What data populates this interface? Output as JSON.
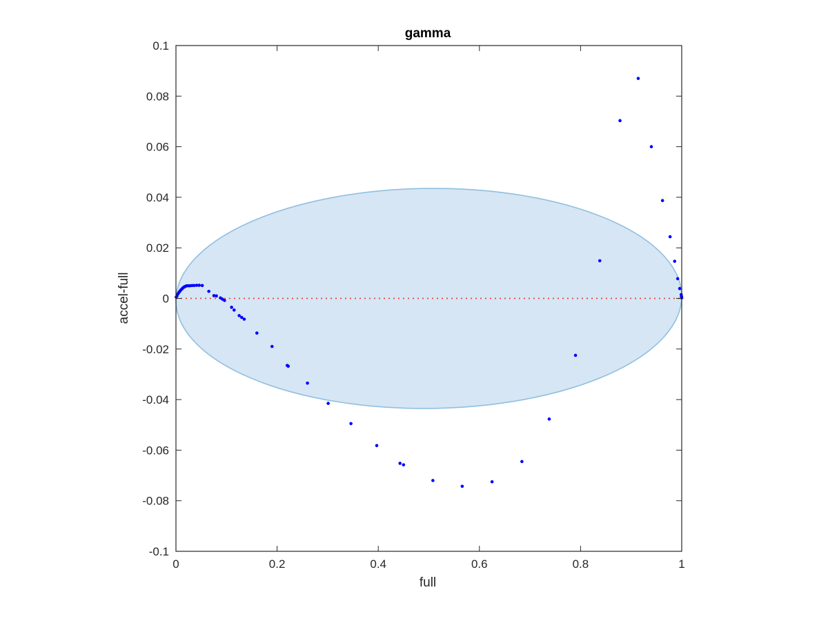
{
  "chart_data": {
    "type": "scatter",
    "title": "gamma",
    "xlabel": "full",
    "ylabel": "accel-full",
    "xlim": [
      0,
      1
    ],
    "ylim": [
      -0.1,
      0.1
    ],
    "xticks": [
      0,
      0.2,
      0.4,
      0.6,
      0.8,
      1
    ],
    "xtick_labels": [
      "0",
      "0.2",
      "0.4",
      "0.6",
      "0.8",
      "1"
    ],
    "yticks": [
      -0.1,
      -0.08,
      -0.06,
      -0.04,
      -0.02,
      0,
      0.02,
      0.04,
      0.06,
      0.08,
      0.1
    ],
    "ytick_labels": [
      "-0.1",
      "-0.08",
      "-0.06",
      "-0.04",
      "-0.02",
      "0",
      "0.02",
      "0.04",
      "0.06",
      "0.08",
      "0.1"
    ],
    "grid": false,
    "colors": {
      "points": "#0000ff",
      "reference_line": "#e8413c",
      "ellipse_fill": "#d6e6f4",
      "ellipse_stroke": "#8fbfe0",
      "axes": "#262626"
    },
    "reference_line": {
      "y": 0,
      "style": "dotted"
    },
    "ellipse": {
      "cx": 0.5,
      "cy": 0,
      "rx": 0.5,
      "ry": 0.0435,
      "rotation_deg": -0.6
    },
    "series": [
      {
        "x": [
          0.0005,
          0.002,
          0.004,
          0.006,
          0.008,
          0.01,
          0.012,
          0.014,
          0.016,
          0.018,
          0.02,
          0.022,
          0.025,
          0.028,
          0.032,
          0.036,
          0.041,
          0.046,
          0.052,
          0.065,
          0.075,
          0.08,
          0.088,
          0.092,
          0.096,
          0.11,
          0.115,
          0.125,
          0.13,
          0.135,
          0.16,
          0.19,
          0.22,
          0.222,
          0.26,
          0.301,
          0.346,
          0.397,
          0.443,
          0.45,
          0.508,
          0.566,
          0.625,
          0.684,
          0.738,
          0.79,
          0.838,
          0.878,
          0.914,
          0.94,
          0.962,
          0.977,
          0.986,
          0.992,
          0.996,
          0.999,
          1.0,
          0.9995,
          0.9998
        ],
        "y": [
          0.0005,
          0.001,
          0.0018,
          0.0024,
          0.0029,
          0.0034,
          0.0038,
          0.0042,
          0.0045,
          0.0047,
          0.0049,
          0.005,
          0.005,
          0.005,
          0.0051,
          0.0051,
          0.0052,
          0.0052,
          0.0051,
          0.0028,
          0.0011,
          0.001,
          0.0002,
          -0.0003,
          -0.0008,
          -0.0035,
          -0.0046,
          -0.0068,
          -0.0075,
          -0.0082,
          -0.0137,
          -0.019,
          -0.0265,
          -0.0268,
          -0.0335,
          -0.0415,
          -0.0495,
          -0.0582,
          -0.0652,
          -0.0658,
          -0.072,
          -0.0743,
          -0.0725,
          -0.0645,
          -0.0477,
          -0.0225,
          0.0149,
          0.0703,
          0.087,
          0.06,
          0.0387,
          0.0244,
          0.0147,
          0.0078,
          0.0039,
          0.0015,
          0.0002,
          0.0008,
          0.0005
        ]
      }
    ]
  }
}
